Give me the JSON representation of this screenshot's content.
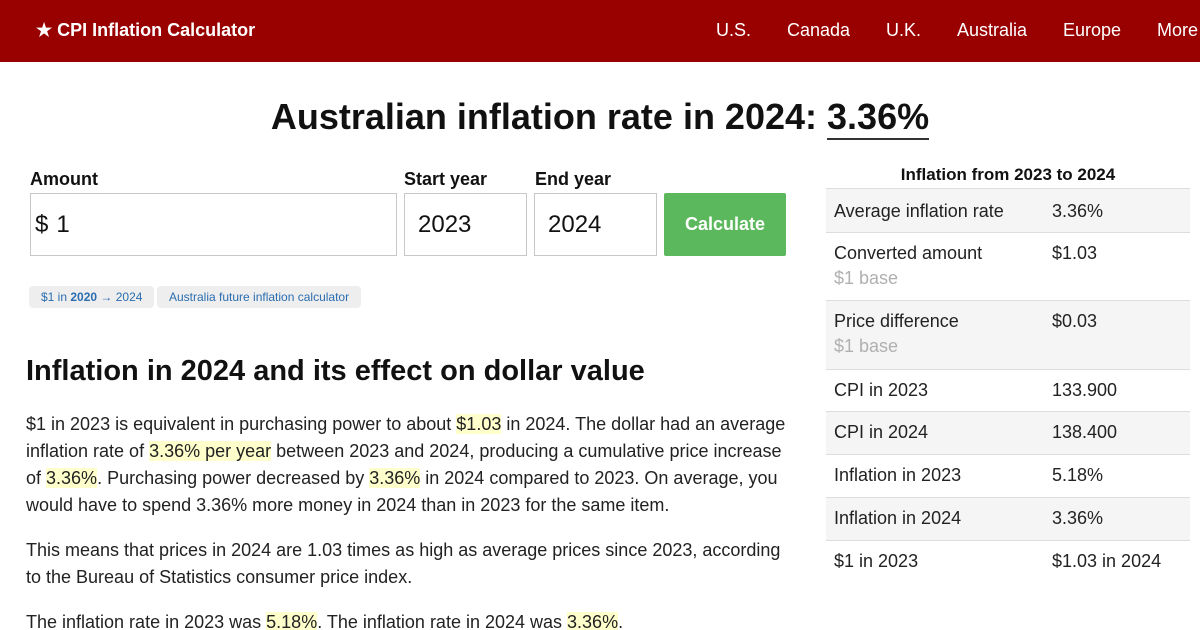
{
  "nav": {
    "brand": "★ CPI Inflation Calculator",
    "links": [
      "U.S.",
      "Canada",
      "U.K.",
      "Australia",
      "Europe",
      "More"
    ]
  },
  "title": {
    "prefix": "Australian inflation rate in 2024:",
    "rate": "3.36%"
  },
  "form": {
    "amount_label": "Amount",
    "start_label": "Start year",
    "end_label": "End year",
    "currency": "$",
    "amount": "1",
    "start_year": "2023",
    "end_year": "2024",
    "calculate": "Calculate"
  },
  "chips": {
    "chip1": {
      "a": "$1 in ",
      "b": "2020",
      "c": " → 2024"
    },
    "chip2": "Australia future inflation calculator"
  },
  "section": {
    "heading": "Inflation in 2024 and its effect on dollar value",
    "p1": {
      "t1": "$1 in 2023 is equivalent in purchasing power to about ",
      "h1": "$1.03",
      "t2": " in 2024. The dollar had an average inflation rate of ",
      "h2": "3.36% per year",
      "t3": " between 2023 and 2024, producing a cumulative price increase of ",
      "h3": "3.36%",
      "t4": ". Purchasing power decreased by ",
      "h4": "3.36%",
      "t5": " in 2024 compared to 2023. On average, you would have to spend 3.36% more money in 2024 than in 2023 for the same item."
    },
    "p2": "This means that prices in 2024 are 1.03 times as high as average prices since 2023, according to the Bureau of Statistics consumer price index.",
    "p3": {
      "t1": "The inflation rate in 2023 was ",
      "h1": "5.18%",
      "t2": ". The inflation rate in 2024 was ",
      "h2": "3.36%",
      "t3": "."
    }
  },
  "sidebar": {
    "caption": "Inflation from 2023 to 2024",
    "rows": [
      {
        "label": "Average inflation rate",
        "value": "3.36%",
        "sub": ""
      },
      {
        "label": "Converted amount",
        "value": "$1.03",
        "sub": "$1 base"
      },
      {
        "label": "Price difference",
        "value": "$0.03",
        "sub": "$1 base"
      },
      {
        "label": "CPI in 2023",
        "value": "133.900",
        "sub": ""
      },
      {
        "label": "CPI in 2024",
        "value": "138.400",
        "sub": ""
      },
      {
        "label": "Inflation in 2023",
        "value": "5.18%",
        "sub": ""
      },
      {
        "label": "Inflation in 2024",
        "value": "3.36%",
        "sub": ""
      },
      {
        "label": "$1 in 2023",
        "value": "$1.03 in 2024",
        "sub": ""
      }
    ]
  },
  "colors": {
    "nav_bg": "#990000",
    "button": "#5cb85c",
    "highlight": "#ffffcc",
    "link": "#2a6db0"
  }
}
